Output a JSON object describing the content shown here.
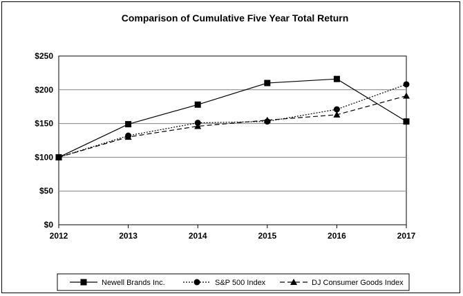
{
  "chart_data": {
    "type": "line",
    "title": "Comparison of Cumulative Five Year Total Return",
    "xlabel": "",
    "ylabel": "",
    "categories": [
      "2012",
      "2013",
      "2014",
      "2015",
      "2016",
      "2017"
    ],
    "ylim": [
      0,
      250
    ],
    "yticks": [
      "$0",
      "$50",
      "$100",
      "$150",
      "$200",
      "$250"
    ],
    "ytick_values": [
      0,
      50,
      100,
      150,
      200,
      250
    ],
    "grid": true,
    "legend_position": "bottom",
    "series": [
      {
        "name": "Newell Brands Inc.",
        "values": [
          100,
          149,
          178,
          210,
          216,
          153
        ],
        "marker": "square",
        "dash": "solid",
        "color": "#000000"
      },
      {
        "name": "S&P 500 Index",
        "values": [
          100,
          132,
          151,
          153,
          171,
          208
        ],
        "marker": "circle",
        "dash": "dotted",
        "color": "#000000"
      },
      {
        "name": "DJ Consumer Goods Index",
        "values": [
          100,
          130,
          146,
          155,
          163,
          191
        ],
        "marker": "triangle",
        "dash": "dashed",
        "color": "#000000"
      }
    ]
  }
}
